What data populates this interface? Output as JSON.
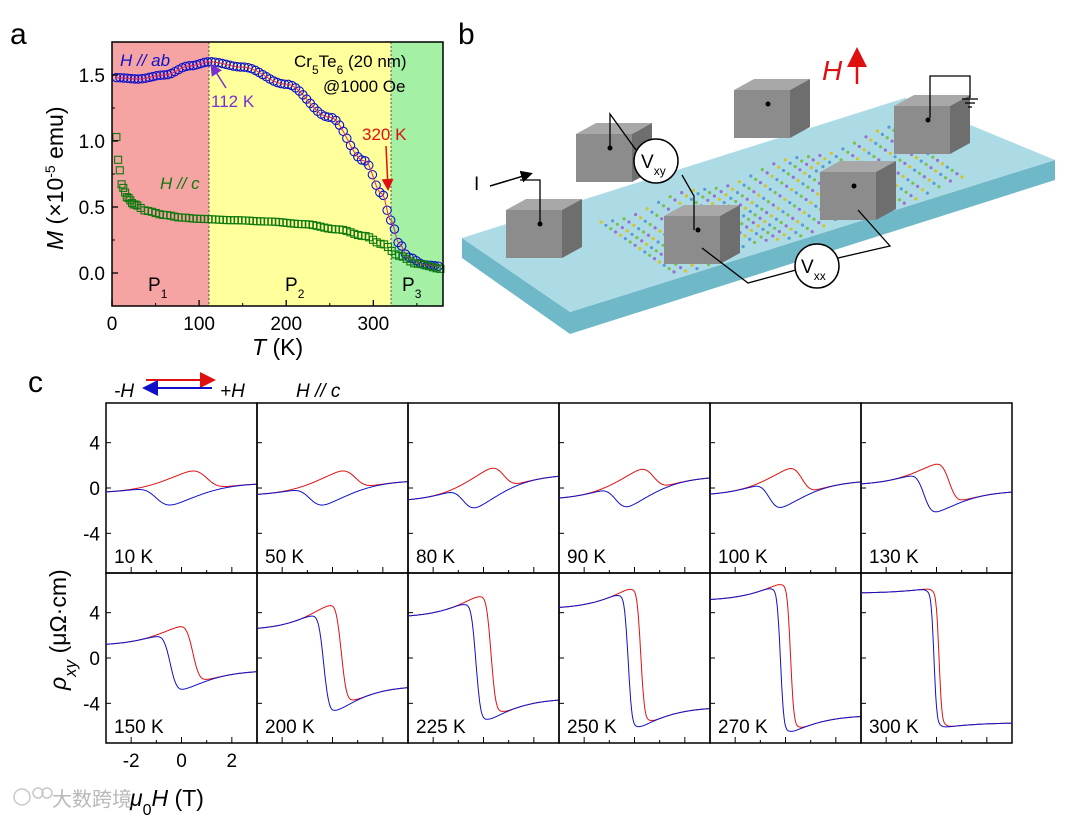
{
  "panel_labels": {
    "a": "a",
    "b": "b",
    "c": "c"
  },
  "panel_a": {
    "sample_line1": "Cr5Te6 (20 nm)",
    "sample_line2": "@1000 Oe",
    "label_hab": "H // ab",
    "label_hc": "H // c",
    "ann_112": "112 K",
    "ann_320": "320 K",
    "phase_labels": [
      "P1",
      "P2",
      "P3"
    ],
    "x_ticks": [
      "0",
      "100",
      "200",
      "300"
    ],
    "y_ticks": [
      "0.0",
      "0.5",
      "1.0",
      "1.5"
    ],
    "xlabel_var": "T",
    "xlabel_unit": " (K)",
    "ylabel_var": "M",
    "ylabel_unit": " (×10",
    "ylabel_exp": "-5",
    "ylabel_tail": " emu)",
    "colors": {
      "p1": "#f5a3a3",
      "p2": "#ffff9c",
      "p3": "#a4f0a4",
      "hab": "#1010c8",
      "hc": "#0e7a0e",
      "ann_purple": "#7b2fd0",
      "ann_red": "#e01010"
    }
  },
  "panel_b": {
    "current_label": "I",
    "field_label": "H",
    "vxy_label": "V",
    "vxy_sub": "xy",
    "vxx_label": "V",
    "vxx_sub": "xx",
    "colors": {
      "substrate": "#9fd3df",
      "contact": "#8c8c8c",
      "field_arrow": "#e01010"
    }
  },
  "panel_c": {
    "legend_left": "-H",
    "legend_right": "+H",
    "field_dir": "H // c",
    "temps": [
      "10 K",
      "50 K",
      "80 K",
      "90 K",
      "100 K",
      "130 K",
      "150 K",
      "200 K",
      "225 K",
      "250 K",
      "270 K",
      "300 K"
    ],
    "y_ticks": [
      "4",
      "0",
      "-4"
    ],
    "x_ticks": [
      "-2",
      "0",
      "2"
    ],
    "ylabel_var": "ρ",
    "ylabel_sub": "xy",
    "ylabel_unit": " (μΩ·cm)",
    "xlabel_pre": "μ",
    "xlabel_sub": "0",
    "xlabel_var": "H",
    "xlabel_unit": " (T)",
    "colors": {
      "sweep_up": "#e01010",
      "sweep_down": "#1010c8"
    }
  },
  "watermark": "大数跨境",
  "chart_data": [
    {
      "type": "scatter",
      "xlabel": "T (K)",
      "ylabel": "M (×10-5 emu)",
      "xlim": [
        0,
        380
      ],
      "ylim": [
        -0.25,
        1.75
      ],
      "phase_boundaries": [
        112,
        320
      ],
      "series": [
        {
          "name": "H // ab",
          "x": [
            5,
            30,
            60,
            90,
            112,
            150,
            200,
            250,
            290,
            310,
            320,
            330,
            340,
            360,
            380
          ],
          "y": [
            1.48,
            1.47,
            1.5,
            1.57,
            1.6,
            1.56,
            1.43,
            1.18,
            0.85,
            0.6,
            0.4,
            0.22,
            0.12,
            0.06,
            0.05
          ]
        },
        {
          "name": "H // c",
          "x": [
            5,
            8,
            12,
            18,
            25,
            40,
            60,
            80,
            100,
            140,
            180,
            220,
            260,
            290,
            310,
            330,
            350,
            380
          ],
          "y": [
            1.03,
            0.8,
            0.65,
            0.57,
            0.52,
            0.47,
            0.44,
            0.42,
            0.41,
            0.4,
            0.39,
            0.37,
            0.33,
            0.28,
            0.22,
            0.13,
            0.07,
            0.03
          ]
        }
      ]
    },
    {
      "type": "line",
      "xlabel": "μ0H (T)",
      "ylabel": "ρxy (μΩ·cm)",
      "xlim": [
        -3,
        3
      ],
      "ylim": [
        -7.5,
        7.5
      ],
      "panels": [
        {
          "temp": "10 K",
          "Hc": 1.0,
          "peak": 1.3,
          "slope": 1.1,
          "width": 0.6
        },
        {
          "temp": "50 K",
          "Hc": 0.9,
          "peak": 1.3,
          "slope": 1.25,
          "width": 0.55
        },
        {
          "temp": "80 K",
          "Hc": 0.8,
          "peak": 1.5,
          "slope": 1.7,
          "width": 0.5
        },
        {
          "temp": "90 K",
          "Hc": 0.75,
          "peak": 1.5,
          "slope": 1.6,
          "width": 0.5
        },
        {
          "temp": "100 K",
          "Hc": 0.65,
          "peak": 1.7,
          "slope": 1.5,
          "width": 0.45
        },
        {
          "temp": "130 K",
          "Hc": 0.5,
          "peak": 2.3,
          "slope": 1.3,
          "width": 0.4
        },
        {
          "temp": "150 K",
          "Hc": 0.45,
          "peak": 3.0,
          "slope": 1.2,
          "width": 0.35
        },
        {
          "temp": "200 K",
          "Hc": 0.35,
          "peak": 5.0,
          "slope": 1.6,
          "width": 0.28
        },
        {
          "temp": "225 K",
          "Hc": 0.3,
          "peak": 5.8,
          "slope": 1.4,
          "width": 0.25
        },
        {
          "temp": "250 K",
          "Hc": 0.25,
          "peak": 6.4,
          "slope": 1.3,
          "width": 0.2
        },
        {
          "temp": "270 K",
          "Hc": 0.2,
          "peak": 6.8,
          "slope": 1.1,
          "width": 0.18
        },
        {
          "temp": "300 K",
          "Hc": 0.1,
          "peak": 6.2,
          "slope": 0.3,
          "width": 0.15
        }
      ]
    }
  ]
}
